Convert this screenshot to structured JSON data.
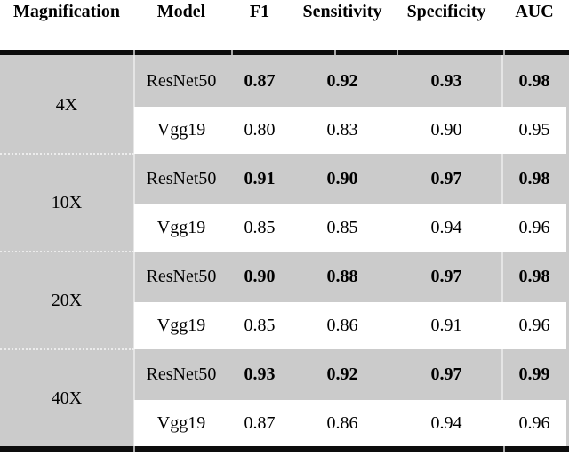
{
  "table": {
    "headers": [
      "Magnification",
      "Model",
      "F1",
      "Sensitivity",
      "Specificity",
      "AUC"
    ],
    "groups": [
      {
        "magnification": "4X",
        "rows": [
          {
            "model": "ResNet50",
            "f1": "0.87",
            "sensitivity": "0.92",
            "specificity": "0.93",
            "auc": "0.98",
            "emphasis": "bold"
          },
          {
            "model": "Vgg19",
            "f1": "0.80",
            "sensitivity": "0.83",
            "specificity": "0.90",
            "auc": "0.95",
            "emphasis": "regular"
          }
        ]
      },
      {
        "magnification": "10X",
        "rows": [
          {
            "model": "ResNet50",
            "f1": "0.91",
            "sensitivity": "0.90",
            "specificity": "0.97",
            "auc": "0.98",
            "emphasis": "bold"
          },
          {
            "model": "Vgg19",
            "f1": "0.85",
            "sensitivity": "0.85",
            "specificity": "0.94",
            "auc": "0.96",
            "emphasis": "regular"
          }
        ]
      },
      {
        "magnification": "20X",
        "rows": [
          {
            "model": "ResNet50",
            "f1": "0.90",
            "sensitivity": "0.88",
            "specificity": "0.97",
            "auc": "0.98",
            "emphasis": "bold"
          },
          {
            "model": "Vgg19",
            "f1": "0.85",
            "sensitivity": "0.86",
            "specificity": "0.91",
            "auc": "0.96",
            "emphasis": "regular"
          }
        ]
      },
      {
        "magnification": "40X",
        "rows": [
          {
            "model": "ResNet50",
            "f1": "0.93",
            "sensitivity": "0.92",
            "specificity": "0.97",
            "auc": "0.99",
            "emphasis": "bold"
          },
          {
            "model": "Vgg19",
            "f1": "0.87",
            "sensitivity": "0.86",
            "specificity": "0.94",
            "auc": "0.96",
            "emphasis": "regular"
          }
        ]
      }
    ],
    "colors": {
      "row_shading": "#cbcbcb",
      "rule": "#0d0d0d",
      "text": "#000000",
      "background": "#ffffff"
    }
  }
}
